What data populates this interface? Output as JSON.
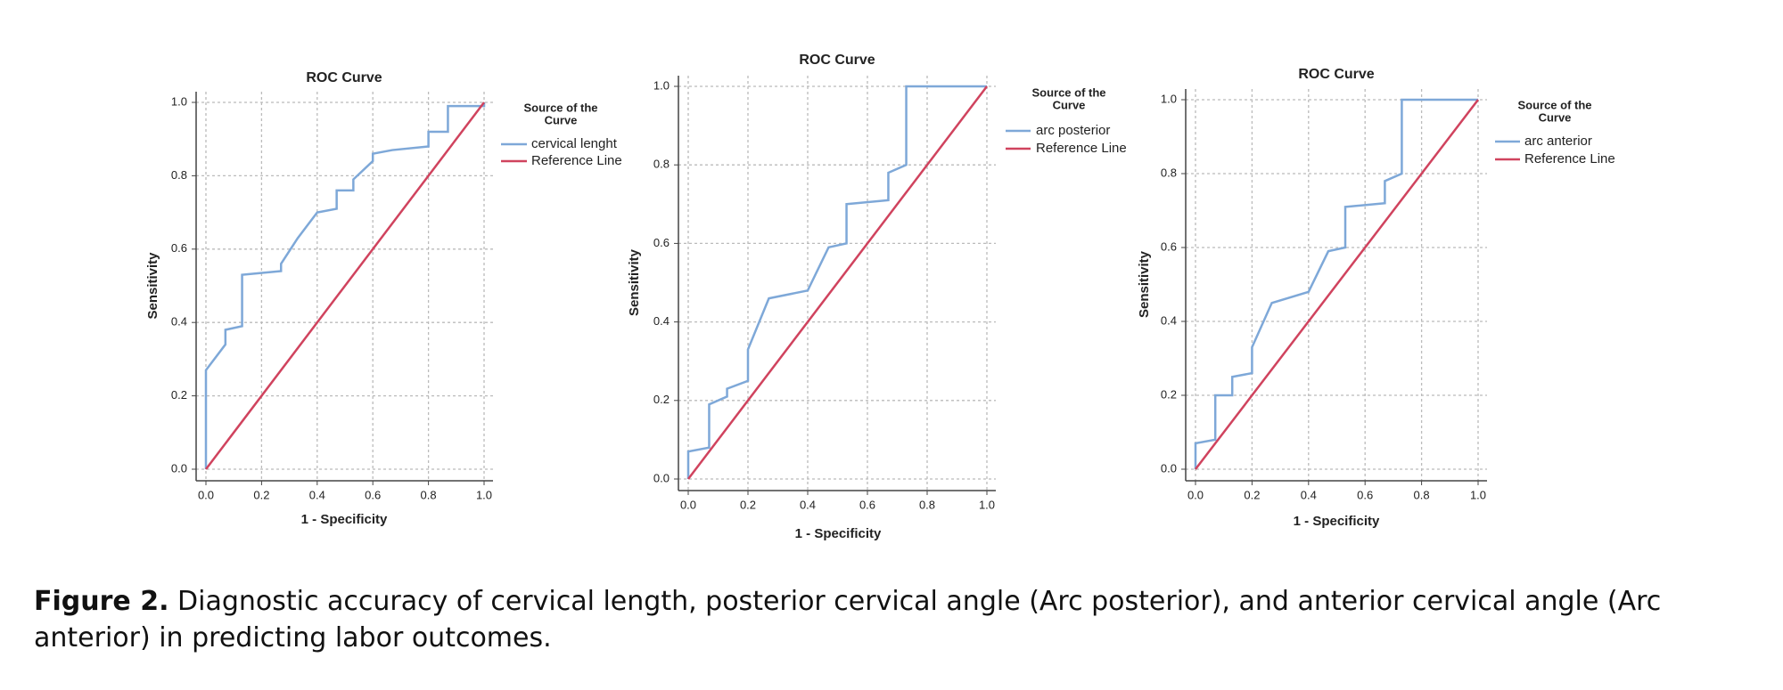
{
  "chart_data": [
    {
      "type": "line",
      "title": "ROC Curve",
      "xlabel": "1 - Specificity",
      "ylabel": "Sensitivity",
      "legend_title": [
        "Source of the",
        "Curve"
      ],
      "grid": true,
      "xlim": [
        0,
        1
      ],
      "ylim": [
        0,
        1
      ],
      "xticks": [
        {
          "value": 0,
          "label": "0.0"
        },
        0.2,
        0.4,
        0.6,
        0.8,
        {
          "value": 1,
          "label": "1.0"
        }
      ],
      "yticks": [
        {
          "value": 0,
          "label": "0.0"
        },
        0.2,
        0.4,
        0.6,
        0.8,
        {
          "value": 1,
          "label": "1.0"
        }
      ],
      "series": [
        {
          "name": "cervical lenght",
          "color": "#7ea8d8",
          "x": [
            0,
            0,
            0.07,
            0.07,
            0.13,
            0.13,
            0.27,
            0.27,
            0.33,
            0.4,
            0.47,
            0.47,
            0.53,
            0.53,
            0.6,
            0.6,
            0.67,
            0.8,
            0.8,
            0.87,
            0.87,
            1,
            1
          ],
          "values": [
            0,
            0.27,
            0.34,
            0.38,
            0.39,
            0.53,
            0.54,
            0.56,
            0.63,
            0.7,
            0.71,
            0.76,
            0.76,
            0.79,
            0.84,
            0.86,
            0.87,
            0.88,
            0.92,
            0.92,
            0.99,
            0.99,
            1
          ]
        },
        {
          "name": "Reference Line",
          "color": "#d0435e",
          "x": [
            0,
            1
          ],
          "values": [
            0,
            1
          ]
        }
      ]
    },
    {
      "type": "line",
      "title": "ROC Curve",
      "xlabel": "1 - Specificity",
      "ylabel": "Sensitivity",
      "legend_title": [
        "Source of the",
        "Curve"
      ],
      "grid": true,
      "xlim": [
        0,
        1
      ],
      "ylim": [
        0,
        1
      ],
      "xticks": [
        {
          "value": 0,
          "label": "0.0"
        },
        0.2,
        0.4,
        0.6,
        0.8,
        {
          "value": 1,
          "label": "1.0"
        }
      ],
      "yticks": [
        {
          "value": 0,
          "label": "0.0"
        },
        0.2,
        0.4,
        0.6,
        0.8,
        {
          "value": 1,
          "label": "1.0"
        }
      ],
      "series": [
        {
          "name": "arc posterior",
          "color": "#7ea8d8",
          "x": [
            0,
            0,
            0.07,
            0.07,
            0.13,
            0.13,
            0.2,
            0.2,
            0.27,
            0.4,
            0.47,
            0.53,
            0.53,
            0.67,
            0.67,
            0.73,
            0.73,
            1
          ],
          "values": [
            0,
            0.07,
            0.08,
            0.19,
            0.21,
            0.23,
            0.25,
            0.33,
            0.46,
            0.48,
            0.59,
            0.6,
            0.7,
            0.71,
            0.78,
            0.8,
            1,
            1
          ]
        },
        {
          "name": "Reference Line",
          "color": "#d0435e",
          "x": [
            0,
            1
          ],
          "values": [
            0,
            1
          ]
        }
      ]
    },
    {
      "type": "line",
      "title": "ROC Curve",
      "xlabel": "1 - Specificity",
      "ylabel": "Sensitivity",
      "legend_title": [
        "Source of the",
        "Curve"
      ],
      "grid": true,
      "xlim": [
        0,
        1
      ],
      "ylim": [
        0,
        1
      ],
      "xticks": [
        {
          "value": 0,
          "label": "0.0"
        },
        0.2,
        0.4,
        0.6,
        0.8,
        {
          "value": 1,
          "label": "1.0"
        }
      ],
      "yticks": [
        {
          "value": 0,
          "label": "0.0"
        },
        0.2,
        0.4,
        0.6,
        0.8,
        {
          "value": 1,
          "label": "1.0"
        }
      ],
      "series": [
        {
          "name": "arc anterior",
          "color": "#7ea8d8",
          "x": [
            0,
            0,
            0.07,
            0.07,
            0.13,
            0.13,
            0.2,
            0.2,
            0.27,
            0.4,
            0.47,
            0.53,
            0.53,
            0.67,
            0.67,
            0.73,
            0.73,
            1
          ],
          "values": [
            0,
            0.07,
            0.08,
            0.2,
            0.2,
            0.25,
            0.26,
            0.33,
            0.45,
            0.48,
            0.59,
            0.6,
            0.71,
            0.72,
            0.78,
            0.8,
            1,
            1
          ]
        },
        {
          "name": "Reference Line",
          "color": "#d0435e",
          "x": [
            0,
            1
          ],
          "values": [
            0,
            1
          ]
        }
      ]
    }
  ],
  "caption": {
    "label": "Figure 2.",
    "text": "Diagnostic accuracy of cervical length, posterior cervical angle (Arc posterior), and anterior cervical angle (Arc anterior) in predicting labor outcomes."
  }
}
